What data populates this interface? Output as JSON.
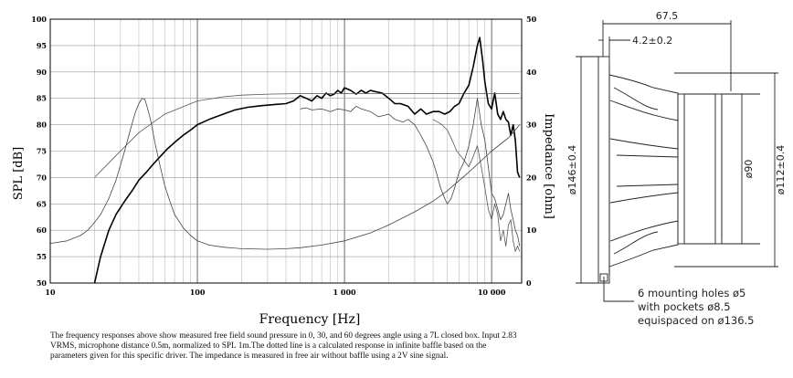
{
  "caption": "The frequency responses above show measured free field sound pressure in 0, 30, and 60 degrees angle using a 7L closed box. Input 2.83 VRMS, microphone distance 0.5m, normalized to SPL 1m.The dotted line is a calculated response in infinite baffle based on the parameters given for this specific driver. The impedance is measured in free air without baffle using a 2V sine signal.",
  "chart_data": {
    "type": "line",
    "xlabel": "Frequency [Hz]",
    "ylabel": "SPL [dB]",
    "y2label": "Impedance [ohm]",
    "xscale": "log",
    "xlim": [
      10,
      16000
    ],
    "ylim": [
      50,
      100
    ],
    "y2lim": [
      0,
      50
    ],
    "grid": true,
    "x_ticks": [
      10,
      100,
      1000,
      10000
    ],
    "x_tick_labels": [
      "10",
      "100",
      "1 000",
      "10 000"
    ],
    "y_ticks": [
      50,
      55,
      60,
      65,
      70,
      75,
      80,
      85,
      90,
      95,
      100
    ],
    "y2_ticks": [
      0,
      10,
      20,
      30,
      40,
      50
    ],
    "series": [
      {
        "axis": "left",
        "x": [
          20,
          22,
          25,
          28,
          32,
          36,
          40,
          45,
          50,
          56,
          63,
          71,
          80,
          90,
          100,
          120,
          150,
          180,
          220,
          270,
          330,
          400,
          450,
          500,
          550,
          600,
          650,
          700,
          750,
          800,
          850,
          900,
          950,
          1000,
          1100,
          1200,
          1300,
          1400,
          1500,
          1600,
          1800,
          2000,
          2200,
          2400,
          2700,
          3000,
          3300,
          3600,
          4000,
          4400,
          4800,
          5200,
          5600,
          6000,
          6500,
          7000,
          7500,
          8000,
          8300,
          8700,
          9000,
          9500,
          10000,
          10500,
          11000,
          11500,
          12000,
          12500,
          13000,
          13500,
          14000,
          14500,
          15000,
          15500
        ],
        "values": [
          50,
          55,
          60,
          63,
          65.5,
          67.5,
          69.5,
          71,
          72.5,
          74,
          75.5,
          76.8,
          78,
          79,
          80,
          81,
          82,
          82.8,
          83.3,
          83.6,
          83.8,
          84,
          84.5,
          85.5,
          85,
          84.5,
          85.5,
          85,
          86,
          85.5,
          85.8,
          86.5,
          86,
          87,
          86.5,
          85.8,
          86.5,
          86,
          86.5,
          86.3,
          86,
          85,
          84,
          84,
          83.5,
          82,
          83,
          82,
          82.5,
          82.5,
          82,
          82.5,
          83.5,
          84,
          86,
          87.5,
          91,
          95,
          96.5,
          92,
          88,
          84,
          83,
          86,
          82,
          81,
          82.5,
          81,
          80.5,
          78,
          80,
          77,
          71,
          70
        ]
      },
      {
        "axis": "left",
        "x": [
          500,
          550,
          600,
          700,
          800,
          900,
          1000,
          1100,
          1200,
          1300,
          1500,
          1700,
          2000,
          2200,
          2500,
          2700,
          3000,
          3300,
          3600,
          4000,
          4200,
          4500,
          4800,
          5000,
          5300,
          5600,
          6000,
          6500,
          7000,
          7500,
          8000,
          8500,
          9000,
          9500,
          10000,
          10500,
          11000,
          11500,
          12000,
          12500,
          13000,
          13500,
          14000,
          14500,
          15000,
          15500
        ],
        "values": [
          83,
          83.2,
          82.8,
          83,
          82.5,
          83,
          82.8,
          82.5,
          83.5,
          83,
          82.5,
          81.5,
          82,
          81,
          80.5,
          81,
          80,
          78,
          76,
          73,
          71,
          68,
          66,
          65,
          66,
          68,
          71,
          73,
          76,
          80,
          85,
          80,
          77,
          72,
          67,
          66,
          64,
          62,
          63,
          65,
          67,
          64,
          62,
          60,
          59,
          57
        ]
      },
      {
        "axis": "left",
        "x": [
          4000,
          4300,
          4600,
          5000,
          5400,
          5800,
          6200,
          6600,
          7000,
          7500,
          8000,
          8500,
          9000,
          9500,
          10000,
          10500,
          11000,
          11500,
          12000,
          12500,
          13000,
          13500,
          14000,
          14500,
          15000,
          15500
        ],
        "values": [
          81,
          80.5,
          80,
          79,
          77,
          75,
          74,
          73,
          72,
          74,
          76,
          72,
          68,
          64,
          62,
          65,
          63,
          58,
          60,
          57,
          61,
          62,
          58,
          56,
          57,
          56
        ]
      },
      {
        "axis": "left",
        "x": [
          20,
          30,
          40,
          60,
          100,
          150,
          200,
          300,
          500,
          700,
          1000,
          1500,
          2000,
          3000,
          5000,
          7000,
          10000,
          15500
        ],
        "values": [
          70,
          75,
          78.5,
          82,
          84.5,
          85.3,
          85.6,
          85.8,
          85.9,
          85.9,
          85.9,
          85.9,
          85.9,
          85.9,
          85.9,
          85.9,
          85.9,
          85.9
        ]
      },
      {
        "axis": "right",
        "x": [
          10,
          13,
          16,
          18,
          20,
          22,
          25,
          28,
          32,
          35,
          38,
          40,
          42,
          44,
          46,
          48,
          52,
          56,
          60,
          65,
          70,
          80,
          90,
          100,
          120,
          150,
          200,
          300,
          400,
          500,
          700,
          1000,
          1500,
          2000,
          3000,
          4000,
          5000,
          7000,
          10000,
          13000,
          15500
        ],
        "values": [
          7.5,
          8,
          9,
          10,
          11.5,
          13,
          16,
          19.5,
          25,
          29,
          32.5,
          34,
          35,
          34.8,
          33,
          31,
          26,
          22,
          18.5,
          15.5,
          13,
          10.5,
          9,
          8,
          7.2,
          6.8,
          6.5,
          6.4,
          6.5,
          6.7,
          7.2,
          8,
          9.5,
          11,
          13.5,
          15.5,
          17.5,
          21,
          25,
          27.5,
          30
        ]
      }
    ],
    "right_inset": {
      "type": "diagram",
      "labels": [
        "67.5",
        "4.2±0.2",
        "ø146±0.4",
        "ø90",
        "ø112±0.4",
        "6 mounting holes ø5",
        "with pockets ø8.5",
        "equispaced on ø136.5"
      ]
    }
  }
}
